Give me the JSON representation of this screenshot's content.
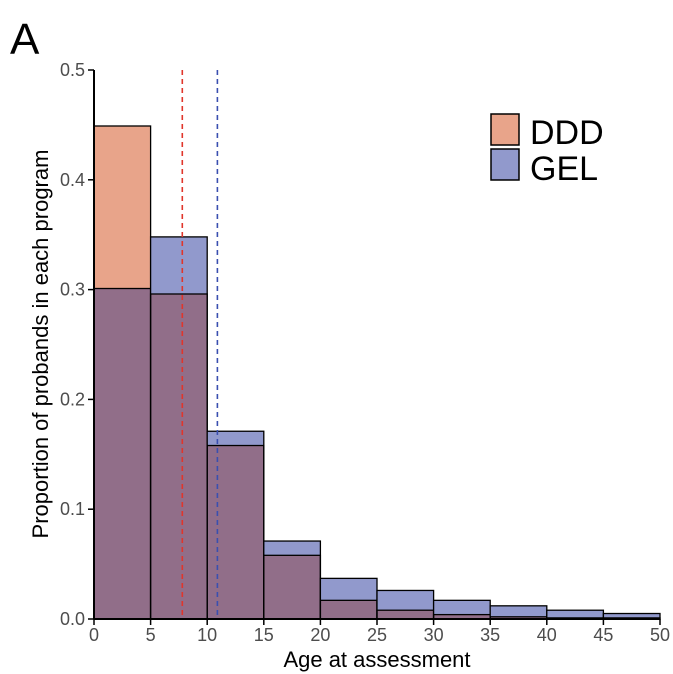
{
  "panel_label": "A",
  "colors": {
    "ddd": "#E8A48A",
    "gel": "#9199CC",
    "overlap": "#916E89",
    "ddd_median_line": "#E0362C",
    "gel_median_line": "#3A4FB0"
  },
  "chart_data": {
    "type": "bar",
    "subtype": "overlapping-histogram",
    "xlabel": "Age at assessment",
    "ylabel": "Proportion of probands in each program",
    "xlim": [
      0,
      50
    ],
    "ylim": [
      0,
      0.5
    ],
    "x_ticks": [
      "0",
      "5",
      "10",
      "15",
      "20",
      "25",
      "30",
      "35",
      "40",
      "45",
      "50"
    ],
    "y_ticks": [
      "0.0",
      "0.1",
      "0.2",
      "0.3",
      "0.4",
      "0.5"
    ],
    "bins": [
      [
        0,
        5
      ],
      [
        5,
        10
      ],
      [
        10,
        15
      ],
      [
        15,
        20
      ],
      [
        20,
        25
      ],
      [
        25,
        30
      ],
      [
        30,
        35
      ],
      [
        35,
        40
      ],
      [
        40,
        45
      ],
      [
        45,
        50
      ]
    ],
    "series": [
      {
        "name": "DDD",
        "values": [
          0.449,
          0.296,
          0.158,
          0.058,
          0.017,
          0.008,
          0.004,
          0.002,
          0.001,
          0.001
        ]
      },
      {
        "name": "GEL",
        "values": [
          0.301,
          0.348,
          0.171,
          0.071,
          0.037,
          0.026,
          0.017,
          0.012,
          0.008,
          0.005
        ]
      }
    ],
    "median_lines": [
      {
        "series": "DDD",
        "x": 7.8
      },
      {
        "series": "GEL",
        "x": 10.9
      }
    ],
    "legend_position": "top-right",
    "grid": false
  }
}
